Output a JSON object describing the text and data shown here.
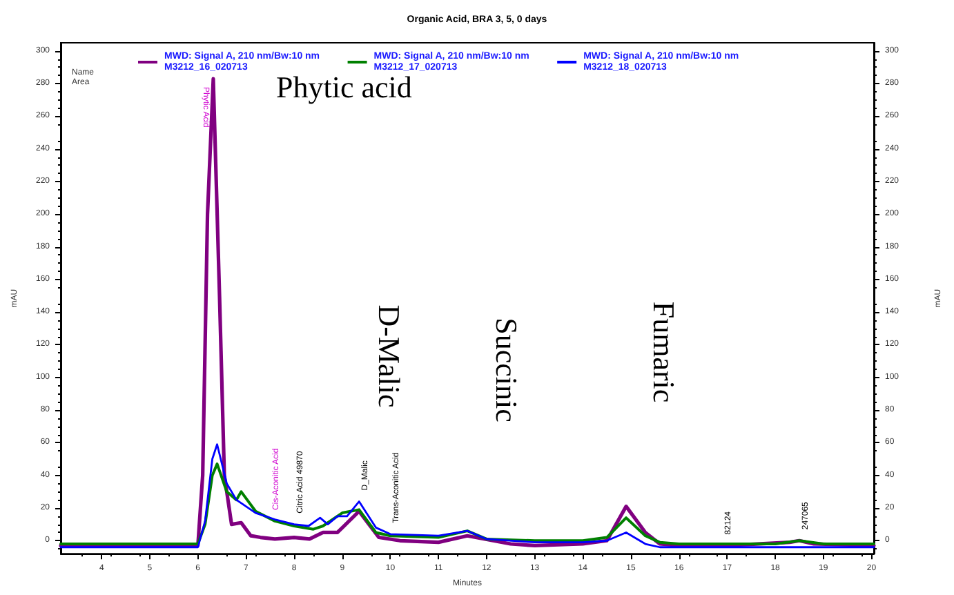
{
  "chart_data": {
    "type": "line",
    "title": "Organic Acid, BRA 3, 5, 0 days",
    "xlabel": "Minutes",
    "ylabel": "mAU",
    "y2label": "mAU",
    "xlim": [
      3.15,
      20.05
    ],
    "xticks": [
      4,
      5,
      6,
      7,
      8,
      9,
      10,
      11,
      12,
      13,
      14,
      15,
      16,
      17,
      18,
      19,
      20
    ],
    "ylim": [
      -8,
      305
    ],
    "yticks": [
      0,
      20,
      40,
      60,
      80,
      100,
      120,
      140,
      160,
      180,
      200,
      220,
      240,
      260,
      280,
      300
    ],
    "y2lim": [
      -8,
      305
    ],
    "y2ticks": [
      0,
      20,
      40,
      60,
      80,
      100,
      120,
      140,
      160,
      180,
      200,
      220,
      240,
      260,
      280,
      300
    ],
    "legend": "top",
    "marker": "none",
    "grid": false,
    "series": [
      {
        "name": "MWD: Signal A, 210 nm/Bw:10 nm\nM3212_16_020713",
        "color": "#800080",
        "x": [
          3.15,
          5,
          6,
          6.1,
          6.2,
          6.32,
          6.45,
          6.55,
          6.7,
          6.9,
          7.1,
          7.3,
          7.6,
          8.0,
          8.32,
          8.6,
          8.9,
          9.35,
          9.76,
          10.2,
          11,
          11.6,
          12.5,
          13,
          14,
          14.5,
          14.9,
          15.3,
          15.6,
          16,
          17,
          18.3,
          18.5,
          18.8,
          20.05
        ],
        "values": [
          -3,
          -3,
          -3,
          40,
          200,
          283,
          150,
          40,
          10,
          11,
          3,
          2,
          1,
          2,
          1,
          5,
          5,
          18,
          2,
          0,
          -1,
          3,
          -2,
          -3,
          -2,
          0,
          21,
          5,
          -2,
          -3,
          -3,
          -1,
          0,
          -2,
          -3
        ]
      },
      {
        "name": "MWD: Signal A, 210 nm/Bw:10 nm\nM3212_17_020713",
        "color": "#008000",
        "x": [
          3.15,
          5,
          6,
          6.15,
          6.3,
          6.4,
          6.6,
          6.8,
          6.9,
          7.2,
          7.6,
          8.0,
          8.4,
          8.6,
          9.0,
          9.35,
          9.7,
          10,
          11,
          11.6,
          12,
          13,
          14,
          14.5,
          14.9,
          15.3,
          15.6,
          16,
          18,
          18.5,
          19,
          20.05
        ],
        "values": [
          -2,
          -2,
          -2,
          10,
          40,
          47,
          30,
          25,
          30,
          18,
          12,
          9,
          7,
          9,
          17,
          19,
          5,
          3,
          2,
          6,
          1,
          0,
          0,
          2,
          14,
          3,
          -1,
          -2,
          -2,
          0,
          -2,
          -2
        ]
      },
      {
        "name": "MWD: Signal A, 210 nm/Bw:10 nm\nM3212_18_020713",
        "color": "#0000ff",
        "x": [
          3.15,
          5,
          6,
          6.15,
          6.3,
          6.4,
          6.6,
          6.8,
          7.2,
          7.6,
          8.0,
          8.3,
          8.54,
          8.7,
          8.9,
          9.1,
          9.35,
          9.7,
          10,
          11,
          11.6,
          12,
          13,
          14,
          14.5,
          14.9,
          15.3,
          15.6,
          16,
          18,
          20.05
        ],
        "values": [
          -4,
          -4,
          -4,
          12,
          50,
          59,
          35,
          25,
          17,
          13,
          10,
          9,
          14,
          10,
          15,
          15,
          24,
          8,
          4,
          3,
          6,
          1,
          -1,
          -1,
          0,
          5,
          -2,
          -4,
          -4,
          -4,
          -4
        ]
      }
    ],
    "annotations": [
      "Name",
      "Area",
      "Phytic acid",
      "D-Malic",
      "Succinic",
      "Fumaric",
      {
        "text": "Phytic Acid",
        "x": 6.32,
        "y": 283
      },
      {
        "text": "Cis-Aconitic Acid",
        "x": 7.5,
        "y": 12
      },
      {
        "text": "Citric Acid 49870",
        "x": 8.0,
        "y": 10
      },
      {
        "text": "D_Malic",
        "x": 9.35,
        "y": 24
      },
      {
        "text": "Trans-Aconitic Acid",
        "x": 10.0,
        "y": 4
      },
      {
        "text": "82124",
        "x": 16.9,
        "y": -3
      },
      {
        "text": "247065",
        "x": 18.5,
        "y": 0
      }
    ]
  }
}
